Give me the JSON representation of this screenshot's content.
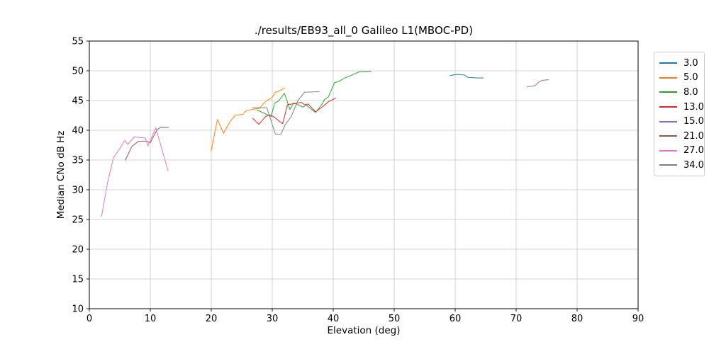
{
  "chart_data": {
    "type": "line",
    "title": "./results/EB93_all_0 Galileo L1(MBOC-PD)",
    "xlabel": "Elevation (deg)",
    "ylabel": "Median CNo dB Hz",
    "xlim": [
      0,
      90
    ],
    "ylim": [
      10,
      55
    ],
    "xticks": [
      0,
      10,
      20,
      30,
      40,
      50,
      60,
      70,
      80,
      90
    ],
    "yticks": [
      10,
      15,
      20,
      25,
      30,
      35,
      40,
      45,
      50,
      55
    ],
    "grid": true,
    "grid_color": "#c6c6c6",
    "legend_position": "outside-top-right",
    "series": [
      {
        "name": "3.0",
        "color": "#1f77b4",
        "points": [
          [
            59.2,
            49.2
          ],
          [
            60.2,
            49.4
          ],
          [
            61.5,
            49.3
          ],
          [
            62.1,
            48.9
          ],
          [
            63.6,
            48.8
          ],
          [
            64.6,
            48.8
          ]
        ]
      },
      {
        "name": "5.0",
        "color": "#ff7f0e",
        "points": [
          [
            20,
            36.6
          ],
          [
            21,
            41.8
          ],
          [
            22,
            39.5
          ],
          [
            23,
            41.3
          ],
          [
            23.9,
            42.5
          ],
          [
            25.2,
            42.7
          ],
          [
            25.6,
            43.2
          ],
          [
            26.6,
            43.5
          ],
          [
            27.9,
            43.7
          ],
          [
            28.5,
            44.4
          ],
          [
            29.1,
            45.0
          ],
          [
            29.9,
            45.4
          ],
          [
            30.5,
            46.4
          ],
          [
            31.1,
            46.6
          ],
          [
            32,
            47.1
          ]
        ]
      },
      {
        "name": "8.0",
        "color": "#2ca02c",
        "points": [
          [
            27.5,
            43.4
          ],
          [
            28.6,
            42.9
          ],
          [
            29.8,
            42.3
          ],
          [
            30.4,
            44.6
          ],
          [
            31,
            44.9
          ],
          [
            32,
            46.2
          ],
          [
            32.9,
            43.5
          ],
          [
            33.5,
            44.6
          ],
          [
            34.2,
            44.3
          ],
          [
            35,
            43.9
          ],
          [
            35.6,
            44.2
          ],
          [
            37.1,
            43.0
          ],
          [
            38.1,
            44.3
          ],
          [
            38.6,
            45.2
          ],
          [
            39.2,
            45.6
          ],
          [
            40.2,
            48.0
          ],
          [
            40.9,
            48.2
          ],
          [
            41.9,
            48.8
          ],
          [
            43.1,
            49.3
          ],
          [
            44.2,
            49.8
          ],
          [
            46.2,
            49.9
          ]
        ]
      },
      {
        "name": "13.0",
        "color": "#d62728",
        "points": [
          [
            26.8,
            42.0
          ],
          [
            27.8,
            41.0
          ],
          [
            28.9,
            42.3
          ],
          [
            29.5,
            42.6
          ],
          [
            30.2,
            42.3
          ],
          [
            31.7,
            41.1
          ],
          [
            32.5,
            44.3
          ],
          [
            33.1,
            44.4
          ],
          [
            34.8,
            44.7
          ],
          [
            35.3,
            44.3
          ],
          [
            35.9,
            44.4
          ],
          [
            37.1,
            43.1
          ],
          [
            38.3,
            44.0
          ],
          [
            39.2,
            44.8
          ],
          [
            40.4,
            45.4
          ]
        ]
      },
      {
        "name": "15.0",
        "color": "#9467bd",
        "points": [
          [
            71.8,
            47.3
          ],
          [
            73.1,
            47.5
          ],
          [
            73.7,
            48.1
          ],
          [
            74.3,
            48.4
          ],
          [
            75.3,
            48.5
          ]
        ]
      },
      {
        "name": "21.0",
        "color": "#8c564b",
        "points": [
          [
            5.9,
            35.0
          ],
          [
            7,
            37.3
          ],
          [
            8,
            38.1
          ],
          [
            9.3,
            38.2
          ],
          [
            10,
            37.9
          ],
          [
            11.1,
            40.1
          ],
          [
            11.7,
            40.5
          ],
          [
            13,
            40.5
          ]
        ]
      },
      {
        "name": "27.0",
        "color": "#e377c2",
        "points": [
          [
            2,
            25.5
          ],
          [
            3,
            31.3
          ],
          [
            4,
            35.5
          ],
          [
            5,
            36.9
          ],
          [
            5.8,
            38.3
          ],
          [
            6.3,
            37.6
          ],
          [
            7.4,
            38.9
          ],
          [
            8,
            38.8
          ],
          [
            9.2,
            38.7
          ],
          [
            9.6,
            37.4
          ],
          [
            10.9,
            40.4
          ],
          [
            12.9,
            33.2
          ]
        ]
      },
      {
        "name": "34.0",
        "color": "#7f7f7f",
        "points": [
          [
            26.8,
            43.8
          ],
          [
            29.1,
            43.8
          ],
          [
            30.5,
            39.4
          ],
          [
            31.4,
            39.3
          ],
          [
            32.1,
            40.9
          ],
          [
            33.1,
            42.3
          ],
          [
            34.2,
            45.0
          ],
          [
            35.3,
            46.4
          ],
          [
            37.7,
            46.5
          ]
        ]
      }
    ]
  }
}
